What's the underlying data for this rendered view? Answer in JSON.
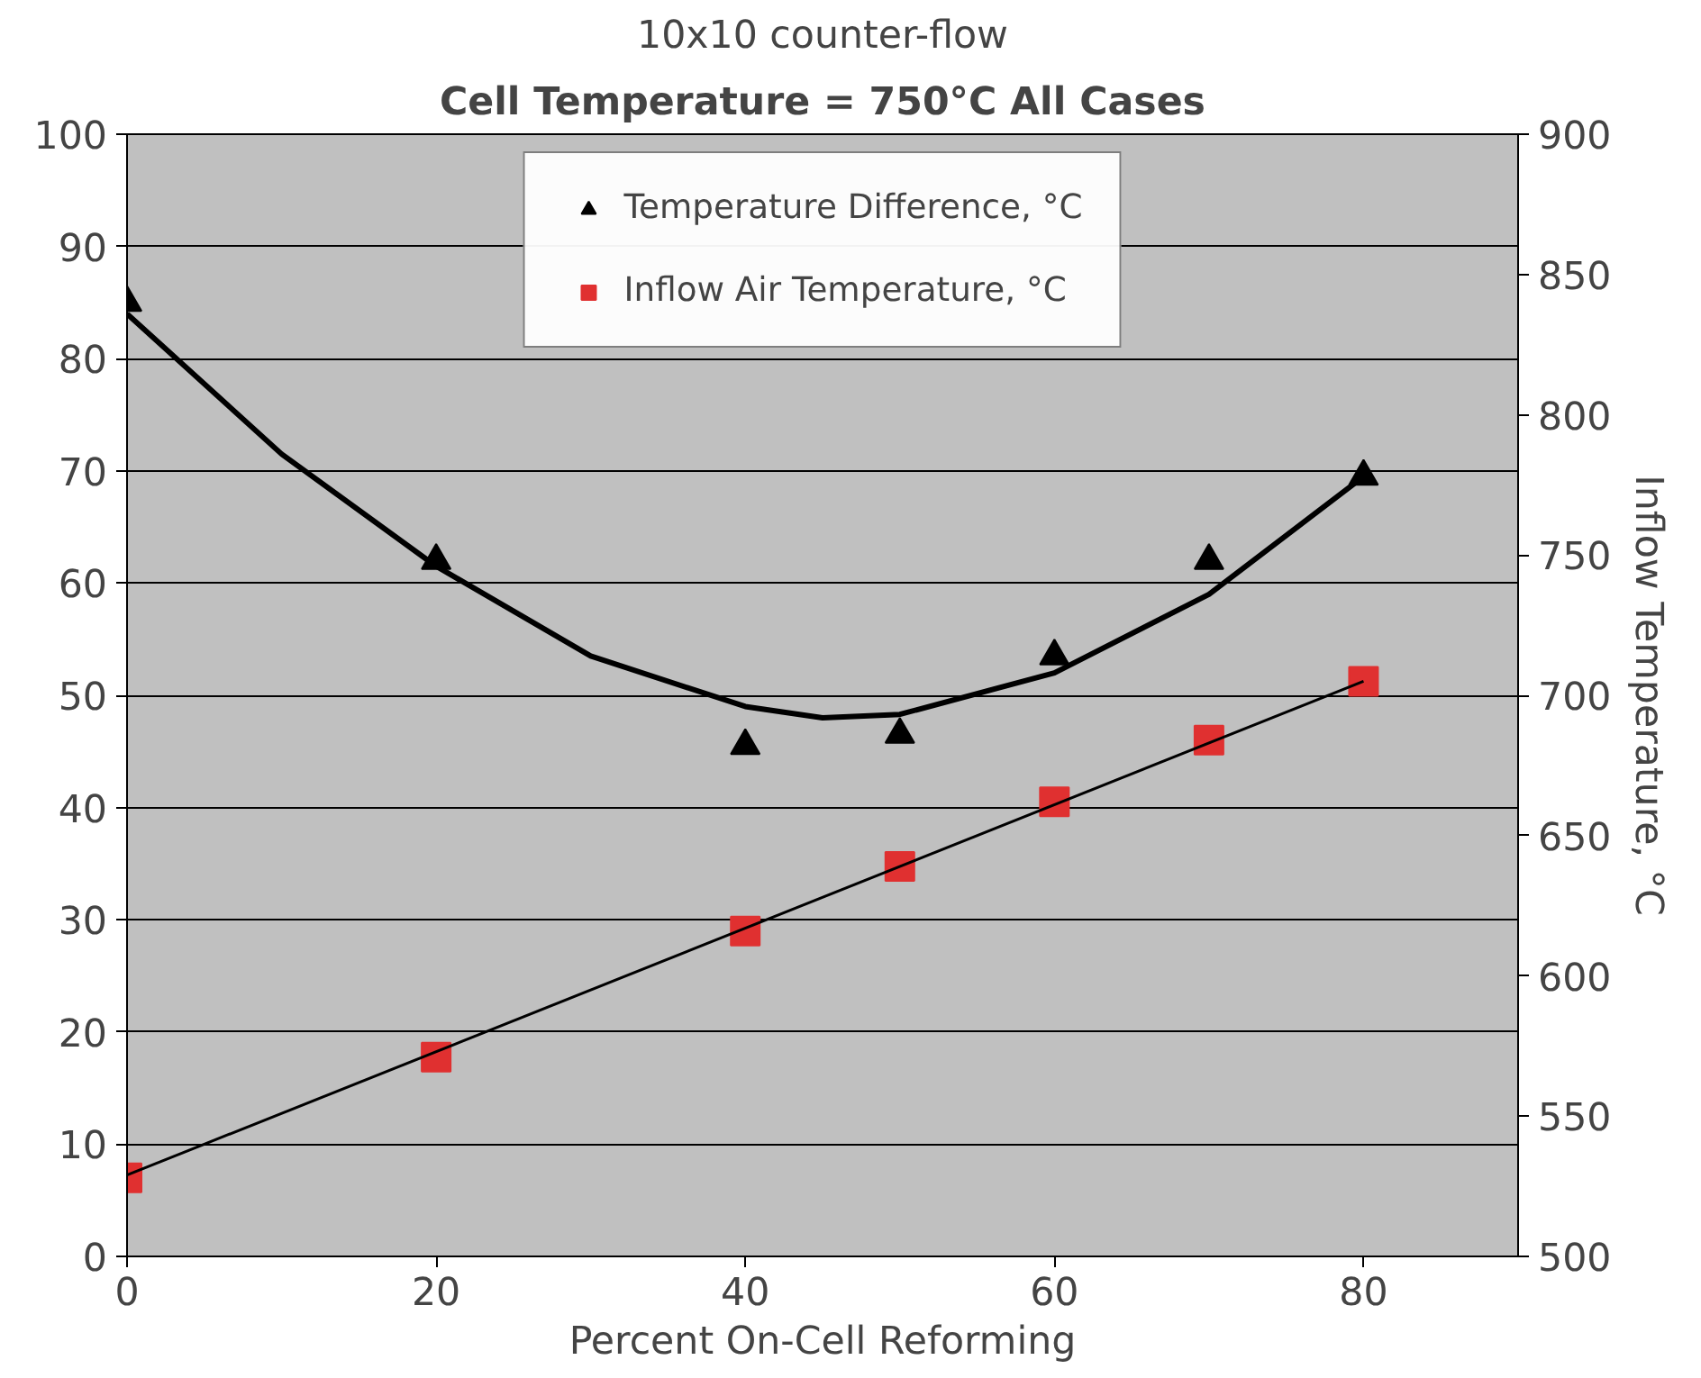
{
  "chart_data": {
    "type": "scatter",
    "title": "10x10 counter-flow",
    "subtitle": "Cell Temperature = 750°C All Cases",
    "xlabel": "Percent On-Cell Reforming",
    "y2label": "Inflow Temperature, °C",
    "xlim": [
      0,
      90
    ],
    "xticks": [
      0,
      20,
      40,
      60,
      80
    ],
    "ylim": [
      0,
      100
    ],
    "yticks": [
      0,
      10,
      20,
      30,
      40,
      50,
      60,
      70,
      80,
      90,
      100
    ],
    "y2lim": [
      500,
      900
    ],
    "y2ticks": [
      500,
      550,
      600,
      650,
      700,
      750,
      800,
      850,
      900
    ],
    "grid": "y",
    "legend": "top",
    "series": [
      {
        "name": "Temperature Difference, °C",
        "color": "#000000",
        "marker": "triangle",
        "x": [
          0,
          20,
          40,
          50,
          60,
          70,
          80
        ],
        "values": [
          85,
          62,
          45.5,
          46.5,
          53.5,
          62,
          69.5
        ]
      },
      {
        "type": "line",
        "color": "#000000",
        "x": [
          0,
          10,
          20,
          30,
          40,
          45,
          50,
          60,
          70,
          80
        ],
        "values": [
          84,
          71.5,
          61.5,
          53.5,
          49,
          48,
          48.3,
          52,
          59,
          69.5
        ]
      },
      {
        "name": "Inflow Air Temperature, °C",
        "color": "#e03030",
        "marker": "square",
        "axis": "y2",
        "x": [
          0,
          20,
          40,
          50,
          60,
          70,
          80
        ],
        "values": [
          528,
          571,
          616,
          639,
          662,
          684,
          705
        ]
      },
      {
        "type": "line",
        "color": "#000000",
        "axis": "y2",
        "x": [
          0,
          80
        ],
        "values": [
          529,
          705
        ]
      }
    ]
  }
}
